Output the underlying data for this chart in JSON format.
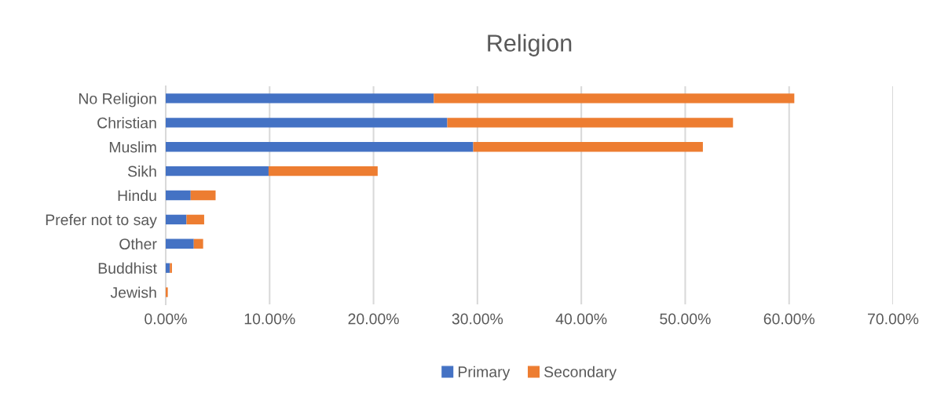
{
  "chart_data": {
    "type": "bar",
    "title": "Religion",
    "orientation": "horizontal",
    "stacked": true,
    "categories": [
      "No Religion",
      "Christian",
      "Muslim",
      "Sikh",
      "Hindu",
      "Prefer not to say",
      "Other",
      "Buddhist",
      "Jewish"
    ],
    "series": [
      {
        "name": "Primary",
        "color": "#4472c4",
        "values": [
          25.8,
          27.1,
          29.6,
          9.9,
          2.4,
          2.0,
          2.7,
          0.4,
          0
        ]
      },
      {
        "name": "Secondary",
        "color": "#ed7d31",
        "values": [
          34.7,
          27.5,
          22.1,
          10.5,
          2.4,
          1.7,
          0.9,
          0.2,
          0.2
        ]
      }
    ],
    "xlim": [
      0,
      70
    ],
    "xticks": [
      {
        "value": 0,
        "label": "0.00%"
      },
      {
        "value": 10,
        "label": "10.00%"
      },
      {
        "value": 20,
        "label": "20.00%"
      },
      {
        "value": 30,
        "label": "30.00%"
      },
      {
        "value": 40,
        "label": "40.00%"
      },
      {
        "value": 50,
        "label": "50.00%"
      },
      {
        "value": 60,
        "label": "60.00%"
      },
      {
        "value": 70,
        "label": "70.00%"
      }
    ],
    "grid": "x",
    "legend": "bottom"
  }
}
